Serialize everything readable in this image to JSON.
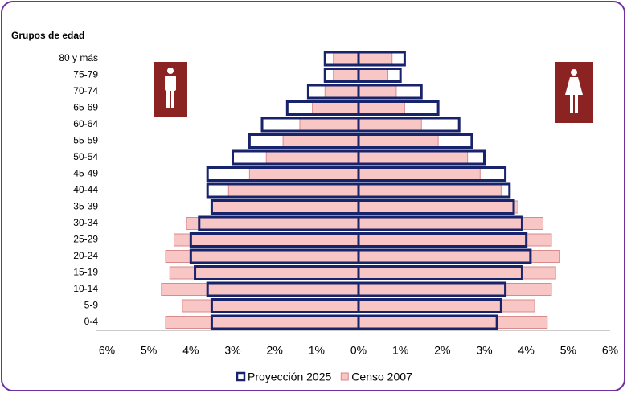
{
  "chart_data": {
    "type": "pyramid",
    "y_axis_title": "Grupos de edad",
    "categories": [
      "0-4",
      "5-9",
      "10-14",
      "15-19",
      "20-24",
      "25-29",
      "30-34",
      "35-39",
      "40-44",
      "45-49",
      "50-54",
      "55-59",
      "60-64",
      "65-69",
      "70-74",
      "75-79",
      "80 y más"
    ],
    "series": [
      {
        "name": "Censo 2007",
        "color": "#f9c6c6",
        "male": [
          -4.6,
          -4.2,
          -4.7,
          -4.5,
          -4.6,
          -4.4,
          -4.1,
          -3.5,
          -3.1,
          -2.6,
          -2.2,
          -1.8,
          -1.4,
          -1.1,
          -0.8,
          -0.6,
          -0.6
        ],
        "female": [
          4.5,
          4.2,
          4.6,
          4.7,
          4.8,
          4.6,
          4.4,
          3.8,
          3.4,
          2.9,
          2.6,
          1.9,
          1.5,
          1.1,
          0.9,
          0.7,
          0.8
        ]
      },
      {
        "name": "Proyección 2025",
        "color": "#17236b",
        "male": [
          -3.5,
          -3.5,
          -3.6,
          -3.9,
          -4.0,
          -4.0,
          -3.8,
          -3.5,
          -3.6,
          -3.6,
          -3.0,
          -2.6,
          -2.3,
          -1.7,
          -1.2,
          -0.8,
          -0.8
        ],
        "female": [
          3.3,
          3.4,
          3.5,
          3.9,
          4.1,
          4.0,
          3.9,
          3.7,
          3.6,
          3.5,
          3.0,
          2.7,
          2.4,
          1.9,
          1.5,
          1.0,
          1.1
        ]
      }
    ],
    "xlim": [
      -6,
      6
    ],
    "xticks": [
      {
        "value": -6,
        "label": "6%"
      },
      {
        "value": -5,
        "label": "5%"
      },
      {
        "value": -4,
        "label": "4%"
      },
      {
        "value": -3,
        "label": "3%"
      },
      {
        "value": -2,
        "label": "2%"
      },
      {
        "value": -1,
        "label": "1%"
      },
      {
        "value": 0,
        "label": "0%"
      },
      {
        "value": 1,
        "label": "1%"
      },
      {
        "value": 2,
        "label": "2%"
      },
      {
        "value": 3,
        "label": "3%"
      },
      {
        "value": 4,
        "label": "4%"
      },
      {
        "value": 5,
        "label": "5%"
      },
      {
        "value": 6,
        "label": "6%"
      }
    ],
    "legend": "bottom"
  }
}
